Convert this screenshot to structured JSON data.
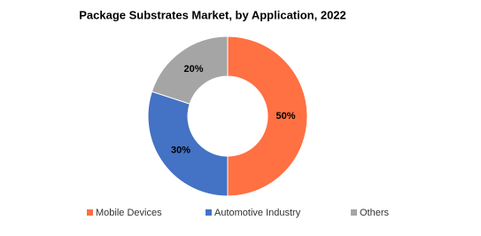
{
  "chart_data": {
    "type": "donut",
    "title": "Package Substrates Market, by Application, 2022",
    "categories": [
      "Mobile Devices",
      "Automotive Industry",
      "Others"
    ],
    "values": [
      50,
      30,
      20
    ],
    "value_labels": [
      "50%",
      "30%",
      "20%"
    ],
    "colors": [
      "#ff7043",
      "#4472c4",
      "#a5a5a5"
    ]
  }
}
